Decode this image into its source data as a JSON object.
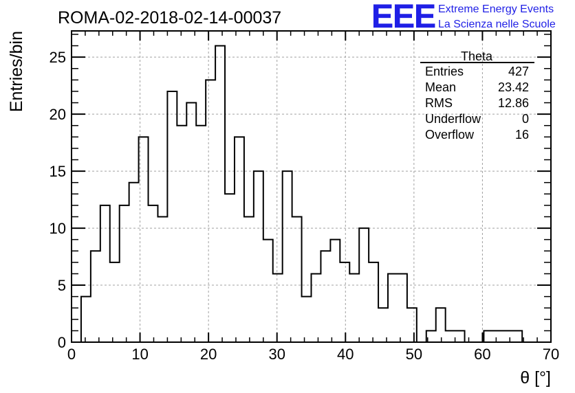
{
  "title": "ROMA-02-2018-02-14-00037",
  "logo": {
    "mark": "EEE",
    "line1": "Extreme Energy Events",
    "line2": "La Scienza nelle Scuole",
    "color": "#1f1fe6"
  },
  "stats_box": {
    "name": "Theta",
    "rows": [
      {
        "label": "Entries",
        "value": "427"
      },
      {
        "label": "Mean",
        "value": "23.42"
      },
      {
        "label": "RMS",
        "value": "12.86"
      },
      {
        "label": "Underflow",
        "value": "0"
      },
      {
        "label": "Overflow",
        "value": "16"
      }
    ]
  },
  "chart_data": {
    "type": "bar",
    "style": "step-histogram",
    "xlabel": "θ [°]",
    "ylabel": "Entries/bin",
    "xlim": [
      0,
      70
    ],
    "ylim": [
      0,
      27.3
    ],
    "bin_width": 1.4,
    "bin_edges_start": 0,
    "grid": true,
    "x_ticks": [
      0,
      10,
      20,
      30,
      40,
      50,
      60,
      70
    ],
    "y_ticks": [
      0,
      5,
      10,
      15,
      20,
      25
    ],
    "values": [
      0,
      4,
      8,
      12,
      7,
      12,
      14,
      18,
      12,
      11,
      22,
      19,
      21,
      19,
      23,
      26,
      13,
      18,
      11,
      15,
      9,
      6,
      15,
      11,
      4,
      6,
      8,
      9,
      7,
      6,
      10,
      7,
      3,
      6,
      6,
      3,
      0,
      1,
      3,
      1,
      1,
      0,
      0,
      1,
      1,
      1,
      1,
      0,
      0,
      0
    ]
  }
}
